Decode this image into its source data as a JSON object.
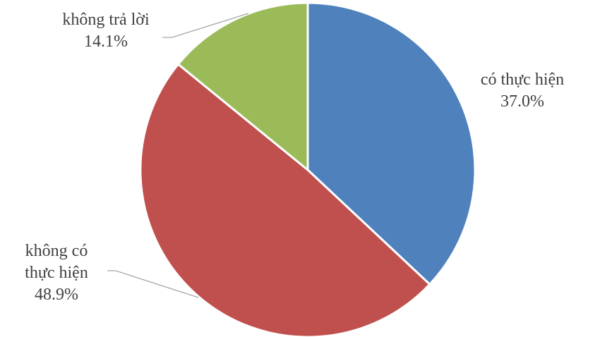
{
  "chart_data": {
    "type": "pie",
    "title": "",
    "start_angle_deg": 0,
    "direction": "clockwise",
    "slices": [
      {
        "label_lines": [
          "có thực hiện"
        ],
        "value": 37.0,
        "value_label": "37.0%",
        "color": "#4f81bd"
      },
      {
        "label_lines": [
          "không có",
          "thực hiện"
        ],
        "value": 48.9,
        "value_label": "48.9%",
        "color": "#c0504d"
      },
      {
        "label_lines": [
          "không trả lời"
        ],
        "value": 14.1,
        "value_label": "14.1%",
        "color": "#9bbb59"
      }
    ],
    "legend": "none",
    "data_labels": "outside, category name and percentage"
  }
}
